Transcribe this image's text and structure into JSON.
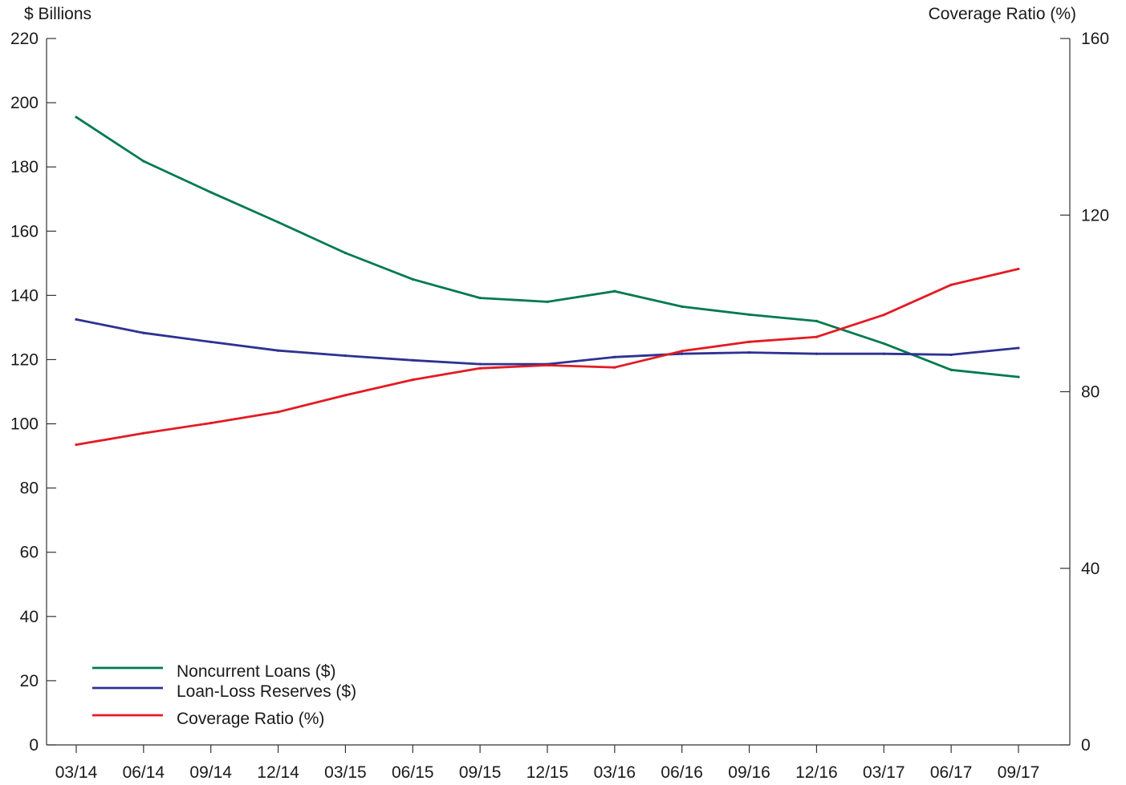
{
  "chart_data": {
    "type": "line",
    "left_axis_title": "$ Billions",
    "right_axis_title": "Coverage Ratio (%)",
    "x": [
      "03/14",
      "06/14",
      "09/14",
      "12/14",
      "03/15",
      "06/15",
      "09/15",
      "12/15",
      "03/16",
      "06/16",
      "09/16",
      "12/16",
      "03/17",
      "06/17",
      "09/17"
    ],
    "ylim_left": [
      0,
      220
    ],
    "yticks_left": [
      0,
      20,
      40,
      60,
      80,
      100,
      120,
      140,
      160,
      180,
      200,
      220
    ],
    "ylim_right": [
      0,
      160
    ],
    "yticks_right": [
      0,
      40,
      80,
      120,
      160
    ],
    "grid": false,
    "legend_position": "bottom-left",
    "series": [
      {
        "name": "Noncurrent Loans ($)",
        "axis": "left",
        "color": "#007a4d",
        "values": [
          195.5,
          181.8,
          172.1,
          162.8,
          153.2,
          145.0,
          139.2,
          138.0,
          141.3,
          136.5,
          134.0,
          132.0,
          125.0,
          116.8,
          114.6
        ]
      },
      {
        "name": "Loan-Loss Reserves ($)",
        "axis": "left",
        "color": "#2e3192",
        "values": [
          132.5,
          128.3,
          125.5,
          122.8,
          121.2,
          119.8,
          118.6,
          118.6,
          120.8,
          121.8,
          122.2,
          121.8,
          121.8,
          121.5,
          123.6
        ]
      },
      {
        "name": "Coverage Ratio (%)",
        "axis": "right",
        "color": "#e31b23",
        "values": [
          68.0,
          70.6,
          72.9,
          75.4,
          79.2,
          82.7,
          85.3,
          86.0,
          85.5,
          89.2,
          91.3,
          92.4,
          97.4,
          104.2,
          107.8
        ]
      }
    ]
  }
}
